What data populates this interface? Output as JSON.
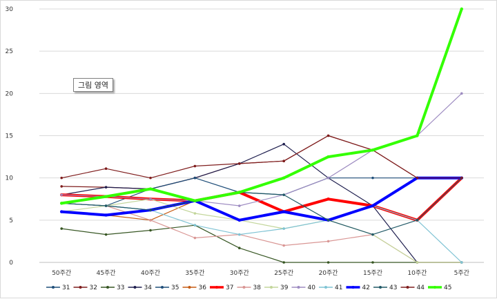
{
  "tooltip": "그림 영역",
  "chart_data": {
    "type": "line",
    "categories": [
      "50주간",
      "45주간",
      "40주간",
      "35주간",
      "30주간",
      "25주간",
      "20주간",
      "15주간",
      "10주간",
      "5주간"
    ],
    "ylim": [
      0,
      30
    ],
    "yticks": [
      0,
      5,
      10,
      15,
      20,
      25,
      30
    ],
    "grid": "horizontal",
    "legend_position": "bottom",
    "series": [
      {
        "name": "31",
        "color": "#1f4e79",
        "width": 1.2,
        "values": [
          7,
          6.7,
          6.2,
          7.3,
          5,
          6,
          5,
          6.7,
          10,
          10
        ]
      },
      {
        "name": "32",
        "color": "#7f1d1d",
        "width": 1.2,
        "values": [
          9,
          8.9,
          8.7,
          10,
          11.7,
          12,
          15,
          13.3,
          10,
          10
        ]
      },
      {
        "name": "33",
        "color": "#375623",
        "width": 1.2,
        "values": [
          4,
          3.3,
          3.8,
          4.4,
          1.7,
          0,
          0,
          0,
          0,
          0
        ]
      },
      {
        "name": "34",
        "color": "#1f1f4f",
        "width": 1.2,
        "values": [
          8,
          8.9,
          8.7,
          10,
          11.7,
          14,
          10,
          6.7,
          0,
          0
        ]
      },
      {
        "name": "35",
        "color": "#1f4e79",
        "width": 1.2,
        "values": [
          7,
          6.7,
          8.7,
          10,
          8.3,
          8,
          10,
          10,
          10,
          10
        ]
      },
      {
        "name": "36",
        "color": "#c55a11",
        "width": 1.2,
        "values": [
          6,
          5.6,
          5,
          7.3,
          8.3,
          6,
          5,
          6.7,
          5,
          10
        ]
      },
      {
        "name": "37",
        "color": "#ff0000",
        "width": 4,
        "values": [
          8,
          7.8,
          7.5,
          7.3,
          8.3,
          6,
          7.5,
          6.7,
          5,
          10
        ]
      },
      {
        "name": "38",
        "color": "#d99694",
        "width": 1.2,
        "values": [
          7,
          6.7,
          5,
          2.9,
          3.3,
          2,
          2.5,
          3.3,
          0,
          0
        ]
      },
      {
        "name": "39",
        "color": "#c3d69b",
        "width": 1.2,
        "values": [
          6,
          6.7,
          7.5,
          5.8,
          5,
          4,
          5,
          3.3,
          0,
          0
        ]
      },
      {
        "name": "40",
        "color": "#9d8bc1",
        "width": 1.2,
        "values": [
          8,
          7.8,
          7.5,
          7.3,
          6.7,
          8,
          10,
          13.3,
          15,
          20
        ]
      },
      {
        "name": "41",
        "color": "#7fc3d4",
        "width": 1.2,
        "values": [
          7,
          6.7,
          6.2,
          4.4,
          3.3,
          4,
          5,
          6.7,
          5,
          0
        ]
      },
      {
        "name": "42",
        "color": "#0000ff",
        "width": 4,
        "values": [
          6,
          5.6,
          6.2,
          7.3,
          5,
          6,
          5,
          6.7,
          10,
          10
        ]
      },
      {
        "name": "43",
        "color": "#215967",
        "width": 1.2,
        "values": [
          7,
          6.7,
          6.2,
          7.3,
          8.3,
          8,
          5,
          3.3,
          5,
          10
        ]
      },
      {
        "name": "44",
        "color": "#7f1d1d",
        "width": 1.2,
        "values": [
          10,
          11.1,
          10,
          11.4,
          11.7,
          12,
          15,
          13.3,
          10,
          10
        ]
      },
      {
        "name": "45",
        "color": "#33ff00",
        "width": 4,
        "values": [
          7,
          7.8,
          8.7,
          7.3,
          8.3,
          10,
          12.5,
          13.3,
          15,
          30
        ]
      }
    ]
  }
}
